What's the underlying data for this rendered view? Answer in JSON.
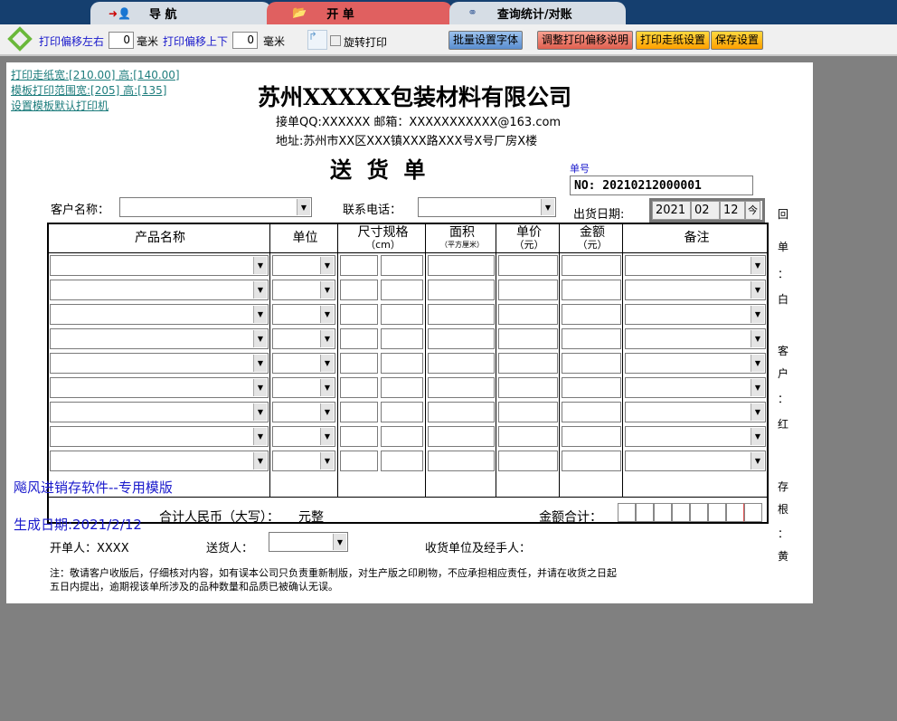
{
  "tabs": [
    {
      "label": "导 航",
      "icon": "navigate-person-icon"
    },
    {
      "label": "开 单",
      "icon": "folder-open-icon",
      "active": true
    },
    {
      "label": "查询统计/对账",
      "icon": "binoculars-icon"
    }
  ],
  "toolbar": {
    "offset_lr_label": "打印偏移左右",
    "offset_lr_value": "0",
    "unit1": "毫米",
    "offset_ud_label": "打印偏移上下",
    "offset_ud_value": "0",
    "unit2": "毫米",
    "rotate_label": "旋转打印",
    "rotate_checked": false,
    "buttons": [
      {
        "label": "批量设置字体",
        "color": "#6a9edc"
      },
      {
        "label": "调整打印偏移说明",
        "color": "#ee7a6a"
      },
      {
        "label": "打印走纸设置",
        "color": "#ffb820"
      },
      {
        "label": "保存设置",
        "color": "#ffb820"
      }
    ]
  },
  "links": [
    "打印走纸宽:[210.00] 高:[140.00]",
    "模板打印范围宽:[205] 高:[135]",
    "设置模板默认打印机"
  ],
  "header": {
    "company": "苏州XXXXX包装材料有限公司",
    "contact": "接单QQ:XXXXXX 邮箱：XXXXXXXXXXX@163.com",
    "address": "地址:苏州市XX区XXX镇XXX路XXX号X号厂房X楼",
    "title": "送  货  单",
    "order_no_label": "单号",
    "order_no": "NO: 20210212000001"
  },
  "form": {
    "customer_label": "客户名称：",
    "phone_label": "联系电话：",
    "date_label": "出货日期:",
    "date_year": "2021",
    "date_month": "02",
    "date_day": "12",
    "today_btn": "今"
  },
  "table": {
    "headers": [
      "产品名称",
      "单位",
      "尺寸规格",
      "面积",
      "单价",
      "金额",
      "备注"
    ],
    "subheaders": [
      "",
      "",
      "（cm）",
      "（平方厘米）",
      "（元）",
      "（元）",
      ""
    ],
    "row_count": 9
  },
  "totals": {
    "rmb_label": "合计人民币（大写）：",
    "rmb_value": "元整",
    "amount_label": "金额合计："
  },
  "footer": {
    "creator": "开单人：XXXX",
    "deliverer_label": "送货人：",
    "receiver_label": "收货单位及经手人：",
    "note1": "注：敬请客户收版后，仔细核对内容，如有误本公司只负责重新制版，对生产版之印刷物，不应承担相应责任，并请在收货之日起",
    "note2": "五日内提出，逾期视该单所涉及的品种数量和品质已被确认无误。"
  },
  "watermark": {
    "software": "飚风进销存软件--专用模版",
    "date": "生成日期:2021/2/12"
  },
  "side_text": [
    "回",
    "单",
    "：",
    "白",
    "客",
    "户",
    "：",
    "红",
    "存",
    "根",
    "：",
    "黄"
  ]
}
